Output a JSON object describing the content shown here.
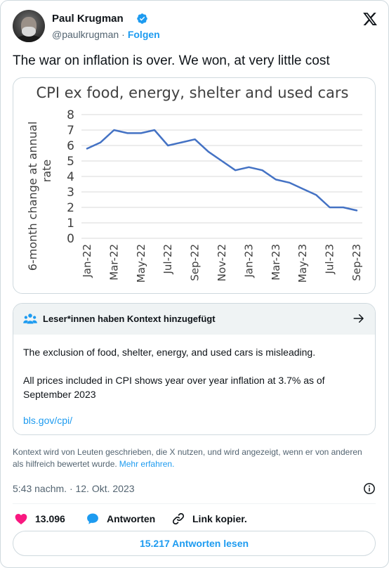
{
  "author": {
    "name": "Paul Krugman",
    "handle": "@paulkrugman",
    "separator": "·",
    "follow_label": "Folgen"
  },
  "tweet": {
    "text": "The war on inflation is over. We won, at very little cost"
  },
  "chart_data": {
    "type": "line",
    "title": "CPI ex food, energy, shelter and used cars",
    "xlabel": "",
    "ylabel": "6-month change at annual rate",
    "ylim": [
      0,
      8
    ],
    "y_ticks": [
      0,
      1,
      2,
      3,
      4,
      5,
      6,
      7,
      8
    ],
    "x_tick_labels": [
      "Jan-22",
      "Mar-22",
      "May-22",
      "Jul-22",
      "Sep-22",
      "Nov-22",
      "Jan-23",
      "Mar-23",
      "May-23",
      "Jul-23",
      "Sep-23"
    ],
    "x": [
      "Jan-22",
      "Feb-22",
      "Mar-22",
      "Apr-22",
      "May-22",
      "Jun-22",
      "Jul-22",
      "Aug-22",
      "Sep-22",
      "Oct-22",
      "Nov-22",
      "Dec-22",
      "Jan-23",
      "Feb-23",
      "Mar-23",
      "Apr-23",
      "May-23",
      "Jun-23",
      "Jul-23",
      "Aug-23",
      "Sep-23"
    ],
    "values": [
      5.8,
      6.2,
      7.0,
      6.8,
      6.8,
      7.0,
      6.0,
      6.2,
      6.4,
      5.6,
      5.0,
      4.4,
      4.6,
      4.4,
      3.8,
      3.6,
      3.2,
      2.8,
      2.0,
      2.0,
      1.8
    ],
    "color": "#4472c4",
    "grid": true
  },
  "community_note": {
    "header": "Leser*innen haben Kontext hinzugefügt",
    "paragraph1": "The exclusion of food, shelter, energy, and used cars is misleading.",
    "paragraph2": "All prices included in CPI shows year over year inflation at 3.7% as of September 2023",
    "link": "bls.gov/cpi/"
  },
  "context_text": "Kontext wird von Leuten geschrieben, die X nutzen, und wird angezeigt, wenn er von anderen als hilfreich bewertet wurde.",
  "context_more": "Mehr erfahren.",
  "timestamp": "5:43 nachm. · 12. Okt. 2023",
  "actions": {
    "likes": "13.096",
    "reply_label": "Antworten",
    "copy_label": "Link kopier."
  },
  "read_replies": "15.217 Antworten lesen",
  "colors": {
    "accent": "#1d9bf0",
    "like": "#f91880",
    "series": "#4472c4"
  }
}
